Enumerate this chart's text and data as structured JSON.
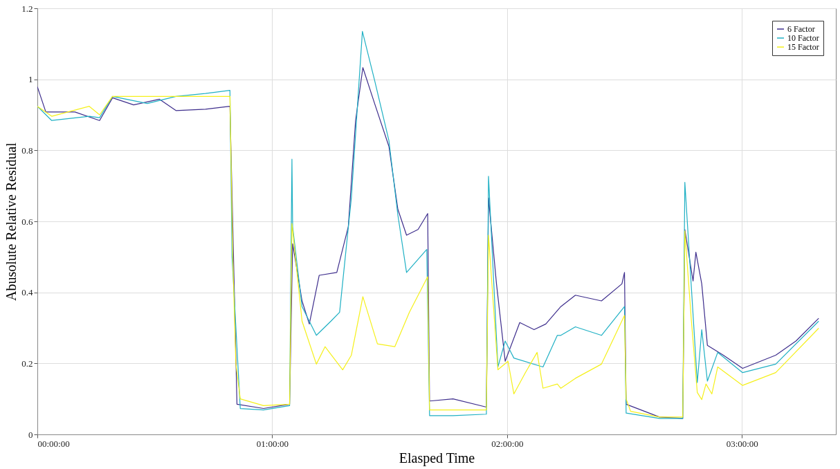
{
  "chart_data": {
    "type": "line",
    "xlabel": "Elasped Time",
    "ylabel": "Abusolute Relative Residual",
    "xlim": [
      0,
      3.4
    ],
    "ylim": [
      0,
      1.2
    ],
    "xticks": [
      {
        "value": 0,
        "label": "00:00:00"
      },
      {
        "value": 1,
        "label": "01:00:00"
      },
      {
        "value": 2,
        "label": "02:00:00"
      },
      {
        "value": 3,
        "label": "03:00:00"
      }
    ],
    "yticks": [
      0,
      0.2,
      0.4,
      0.6,
      0.8,
      1,
      1.2
    ],
    "grid": true,
    "legend": "top right",
    "line_style": "solid",
    "marker": "none",
    "series": [
      {
        "name": "6 Factor",
        "color": "#3d2d8c",
        "x": [
          0,
          0.036,
          0.16,
          0.265,
          0.32,
          0.41,
          0.52,
          0.59,
          0.716,
          0.82,
          0.85,
          0.963,
          1.074,
          1.087,
          1.127,
          1.158,
          1.2,
          1.275,
          1.324,
          1.355,
          1.386,
          1.436,
          1.497,
          1.535,
          1.572,
          1.621,
          1.662,
          1.67,
          1.77,
          1.912,
          1.921,
          1.955,
          1.992,
          2.054,
          2.115,
          2.165,
          2.229,
          2.291,
          2.402,
          2.489,
          2.5,
          2.507,
          2.649,
          2.748,
          2.757,
          2.792,
          2.804,
          2.829,
          2.853,
          2.921,
          3.003,
          3.144,
          3.23,
          3.327
        ],
        "values": [
          0.979,
          0.908,
          0.908,
          0.884,
          0.948,
          0.928,
          0.944,
          0.912,
          0.916,
          0.924,
          0.085,
          0.073,
          0.085,
          0.537,
          0.376,
          0.311,
          0.448,
          0.456,
          0.585,
          0.884,
          1.033,
          0.932,
          0.811,
          0.634,
          0.561,
          0.577,
          0.622,
          0.094,
          0.1,
          0.077,
          0.666,
          0.424,
          0.206,
          0.315,
          0.295,
          0.311,
          0.36,
          0.392,
          0.376,
          0.424,
          0.456,
          0.085,
          0.049,
          0.045,
          0.577,
          0.432,
          0.513,
          0.424,
          0.251,
          0.223,
          0.186,
          0.223,
          0.263,
          0.327
        ]
      },
      {
        "name": "10 Factor",
        "color": "#1fb0c4",
        "x": [
          0,
          0.061,
          0.221,
          0.265,
          0.32,
          0.468,
          0.59,
          0.716,
          0.82,
          0.829,
          0.864,
          0.963,
          1.074,
          1.084,
          1.087,
          1.127,
          1.188,
          1.25,
          1.287,
          1.337,
          1.384,
          1.436,
          1.497,
          1.535,
          1.572,
          1.658,
          1.67,
          1.77,
          1.912,
          1.921,
          1.961,
          1.992,
          2.029,
          2.153,
          2.214,
          2.229,
          2.291,
          2.402,
          2.5,
          2.507,
          2.649,
          2.748,
          2.757,
          2.81,
          2.829,
          2.853,
          2.897,
          3.003,
          3.144,
          3.327
        ],
        "values": [
          0.924,
          0.884,
          0.896,
          0.892,
          0.952,
          0.932,
          0.952,
          0.96,
          0.969,
          0.5,
          0.073,
          0.069,
          0.081,
          0.775,
          0.585,
          0.36,
          0.279,
          0.319,
          0.344,
          0.666,
          1.135,
          0.997,
          0.827,
          0.618,
          0.456,
          0.521,
          0.053,
          0.053,
          0.057,
          0.727,
          0.19,
          0.263,
          0.215,
          0.19,
          0.279,
          0.279,
          0.303,
          0.279,
          0.36,
          0.06,
          0.045,
          0.045,
          0.71,
          0.146,
          0.295,
          0.15,
          0.231,
          0.174,
          0.198,
          0.319
        ]
      },
      {
        "name": "15 Factor",
        "color": "#f5f01a",
        "x": [
          0,
          0.061,
          0.221,
          0.265,
          0.32,
          0.468,
          0.59,
          0.716,
          0.82,
          0.832,
          0.845,
          0.864,
          0.963,
          1.074,
          1.084,
          1.127,
          1.188,
          1.225,
          1.3,
          1.337,
          1.386,
          1.448,
          1.522,
          1.584,
          1.662,
          1.67,
          1.77,
          1.912,
          1.921,
          1.961,
          2.004,
          2.029,
          2.078,
          2.128,
          2.153,
          2.214,
          2.229,
          2.291,
          2.402,
          2.5,
          2.507,
          2.526,
          2.649,
          2.748,
          2.757,
          2.785,
          2.81,
          2.829,
          2.847,
          2.872,
          2.897,
          3.003,
          3.144,
          3.327
        ],
        "values": [
          0.924,
          0.896,
          0.924,
          0.9,
          0.952,
          0.952,
          0.952,
          0.952,
          0.952,
          0.5,
          0.2,
          0.1,
          0.081,
          0.085,
          0.594,
          0.319,
          0.198,
          0.247,
          0.182,
          0.223,
          0.388,
          0.255,
          0.247,
          0.344,
          0.444,
          0.069,
          0.069,
          0.069,
          0.561,
          0.182,
          0.206,
          0.114,
          0.174,
          0.231,
          0.13,
          0.142,
          0.13,
          0.158,
          0.198,
          0.335,
          0.1,
          0.065,
          0.049,
          0.049,
          0.573,
          0.319,
          0.118,
          0.098,
          0.142,
          0.114,
          0.19,
          0.138,
          0.174,
          0.299
        ]
      }
    ]
  }
}
